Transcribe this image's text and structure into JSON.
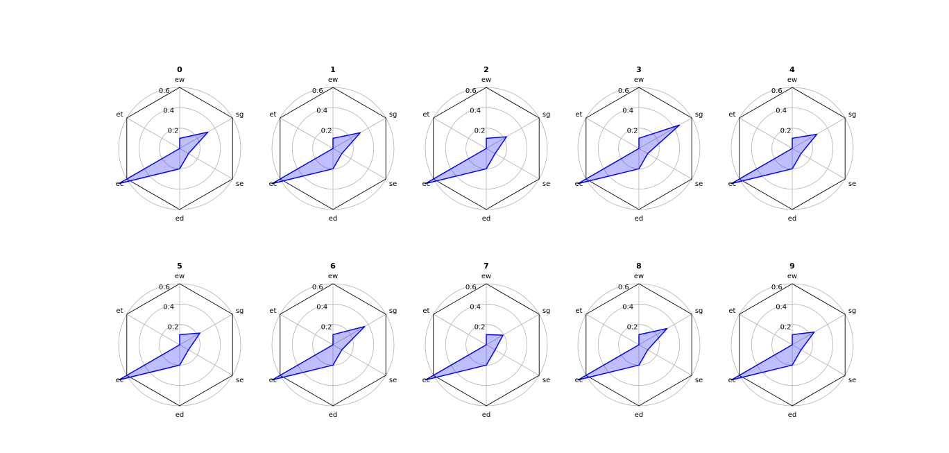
{
  "colors": {
    "series_line": "#0000ff",
    "series_fill": "#0000ff",
    "frame": "#000000",
    "grid": "#b0b0b0"
  },
  "chart_data": [
    {
      "type": "radar",
      "title": "0",
      "axes": [
        "ew",
        "sg",
        "se",
        "ed",
        "ec",
        "et"
      ],
      "rlim": [
        0,
        0.6
      ],
      "rticks": [
        "0.2",
        "0.4",
        "0.6"
      ],
      "grid": true,
      "values": [
        0.1,
        0.32,
        0.1,
        0.2,
        0.69,
        0.0
      ]
    },
    {
      "type": "radar",
      "title": "1",
      "axes": [
        "ew",
        "sg",
        "se",
        "ed",
        "ec",
        "et"
      ],
      "rlim": [
        0,
        0.6
      ],
      "rticks": [
        "0.2",
        "0.4",
        "0.6"
      ],
      "grid": true,
      "values": [
        0.1,
        0.31,
        0.1,
        0.2,
        0.69,
        0.0
      ]
    },
    {
      "type": "radar",
      "title": "2",
      "axes": [
        "ew",
        "sg",
        "se",
        "ed",
        "ec",
        "et"
      ],
      "rlim": [
        0,
        0.6
      ],
      "rticks": [
        "0.2",
        "0.4",
        "0.6"
      ],
      "grid": true,
      "values": [
        0.1,
        0.23,
        0.1,
        0.2,
        0.69,
        0.0
      ]
    },
    {
      "type": "radar",
      "title": "3",
      "axes": [
        "ew",
        "sg",
        "se",
        "ed",
        "ec",
        "et"
      ],
      "rlim": [
        0,
        0.6
      ],
      "rticks": [
        "0.2",
        "0.4",
        "0.6"
      ],
      "grid": true,
      "values": [
        0.1,
        0.46,
        0.1,
        0.2,
        0.69,
        0.0
      ]
    },
    {
      "type": "radar",
      "title": "4",
      "axes": [
        "ew",
        "sg",
        "se",
        "ed",
        "ec",
        "et"
      ],
      "rlim": [
        0,
        0.6
      ],
      "rticks": [
        "0.2",
        "0.4",
        "0.6"
      ],
      "grid": true,
      "values": [
        0.1,
        0.28,
        0.1,
        0.2,
        0.69,
        0.0
      ]
    },
    {
      "type": "radar",
      "title": "5",
      "axes": [
        "ew",
        "sg",
        "se",
        "ed",
        "ec",
        "et"
      ],
      "rlim": [
        0,
        0.6
      ],
      "rticks": [
        "0.2",
        "0.4",
        "0.6"
      ],
      "grid": true,
      "values": [
        0.1,
        0.23,
        0.1,
        0.2,
        0.69,
        0.0
      ]
    },
    {
      "type": "radar",
      "title": "6",
      "axes": [
        "ew",
        "sg",
        "se",
        "ed",
        "ec",
        "et"
      ],
      "rlim": [
        0,
        0.6
      ],
      "rticks": [
        "0.2",
        "0.4",
        "0.6"
      ],
      "grid": true,
      "values": [
        0.1,
        0.36,
        0.1,
        0.2,
        0.69,
        0.0
      ]
    },
    {
      "type": "radar",
      "title": "7",
      "axes": [
        "ew",
        "sg",
        "se",
        "ed",
        "ec",
        "et"
      ],
      "rlim": [
        0,
        0.6
      ],
      "rticks": [
        "0.2",
        "0.4",
        "0.6"
      ],
      "grid": true,
      "values": [
        0.1,
        0.19,
        0.1,
        0.2,
        0.69,
        0.0
      ]
    },
    {
      "type": "radar",
      "title": "8",
      "axes": [
        "ew",
        "sg",
        "se",
        "ed",
        "ec",
        "et"
      ],
      "rlim": [
        0,
        0.6
      ],
      "rticks": [
        "0.2",
        "0.4",
        "0.6"
      ],
      "grid": true,
      "values": [
        0.1,
        0.32,
        0.1,
        0.2,
        0.69,
        0.0
      ]
    },
    {
      "type": "radar",
      "title": "9",
      "axes": [
        "ew",
        "sg",
        "se",
        "ed",
        "ec",
        "et"
      ],
      "rlim": [
        0,
        0.6
      ],
      "rticks": [
        "0.2",
        "0.4",
        "0.6"
      ],
      "grid": true,
      "values": [
        0.1,
        0.25,
        0.1,
        0.2,
        0.69,
        0.0
      ]
    }
  ]
}
